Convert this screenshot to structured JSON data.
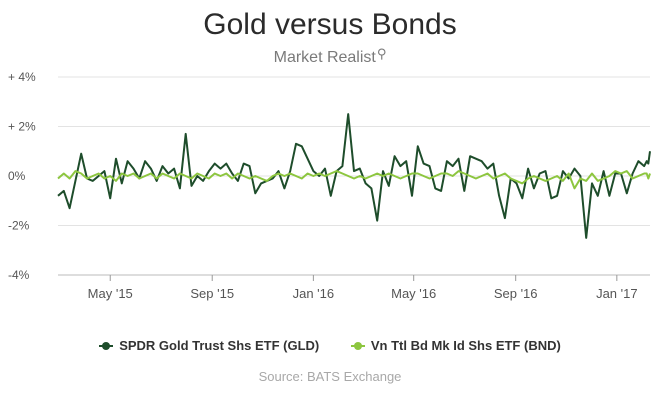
{
  "header": {
    "title": "Gold versus Bonds",
    "brand": "Market Realist"
  },
  "source": "Source: BATS Exchange",
  "colors": {
    "gld": "#1e4d2b",
    "bnd": "#8dc63f",
    "grid": "#e3e3e3",
    "axis": "#555555"
  },
  "chart_data": {
    "type": "line",
    "title": "Gold versus Bonds",
    "xlabel": "",
    "ylabel": "",
    "y_ticks": [
      {
        "value": 4,
        "label": "+ 4%"
      },
      {
        "value": 2,
        "label": "+ 2%"
      },
      {
        "value": 0,
        "label": "0%"
      },
      {
        "value": -2,
        "label": "-2%"
      },
      {
        "value": -4,
        "label": "-4%"
      }
    ],
    "ylim": [
      -4,
      4
    ],
    "xlim": [
      "2015-02-27",
      "2017-02-10"
    ],
    "x_ticks": [
      {
        "date": "2015-05-01",
        "label": "May '15"
      },
      {
        "date": "2015-09-01",
        "label": "Sep '15"
      },
      {
        "date": "2016-01-01",
        "label": "Jan '16"
      },
      {
        "date": "2016-05-01",
        "label": "May '16"
      },
      {
        "date": "2016-09-01",
        "label": "Sep '16"
      },
      {
        "date": "2017-01-01",
        "label": "Jan '17"
      }
    ],
    "legend_position": "bottom",
    "grid": true,
    "series": [
      {
        "name": "SPDR Gold Trust Shs ETF (GLD)",
        "color": "#1e4d2b",
        "points": [
          [
            "2015-02-27",
            -0.8
          ],
          [
            "2015-03-06",
            -0.6
          ],
          [
            "2015-03-13",
            -1.3
          ],
          [
            "2015-03-20",
            -0.2
          ],
          [
            "2015-03-27",
            0.9
          ],
          [
            "2015-04-03",
            -0.1
          ],
          [
            "2015-04-10",
            -0.2
          ],
          [
            "2015-04-17",
            0.0
          ],
          [
            "2015-04-24",
            0.2
          ],
          [
            "2015-05-01",
            -0.9
          ],
          [
            "2015-05-08",
            0.7
          ],
          [
            "2015-05-15",
            -0.3
          ],
          [
            "2015-05-22",
            0.6
          ],
          [
            "2015-05-29",
            0.3
          ],
          [
            "2015-06-05",
            -0.1
          ],
          [
            "2015-06-12",
            0.6
          ],
          [
            "2015-06-19",
            0.3
          ],
          [
            "2015-06-26",
            -0.2
          ],
          [
            "2015-07-03",
            0.4
          ],
          [
            "2015-07-10",
            0.1
          ],
          [
            "2015-07-17",
            0.3
          ],
          [
            "2015-07-24",
            -0.5
          ],
          [
            "2015-07-31",
            1.7
          ],
          [
            "2015-08-07",
            -0.4
          ],
          [
            "2015-08-14",
            0.0
          ],
          [
            "2015-08-21",
            -0.2
          ],
          [
            "2015-08-28",
            0.2
          ],
          [
            "2015-09-04",
            0.5
          ],
          [
            "2015-09-11",
            0.3
          ],
          [
            "2015-09-18",
            0.5
          ],
          [
            "2015-09-25",
            0.1
          ],
          [
            "2015-10-02",
            -0.2
          ],
          [
            "2015-10-09",
            0.5
          ],
          [
            "2015-10-16",
            0.4
          ],
          [
            "2015-10-23",
            -0.7
          ],
          [
            "2015-10-30",
            -0.3
          ],
          [
            "2015-11-06",
            -0.2
          ],
          [
            "2015-11-13",
            -0.1
          ],
          [
            "2015-11-20",
            0.2
          ],
          [
            "2015-11-27",
            -0.5
          ],
          [
            "2015-12-04",
            0.2
          ],
          [
            "2015-12-11",
            1.3
          ],
          [
            "2015-12-18",
            1.2
          ],
          [
            "2015-12-25",
            0.7
          ],
          [
            "2016-01-01",
            0.2
          ],
          [
            "2016-01-08",
            0.0
          ],
          [
            "2016-01-15",
            0.3
          ],
          [
            "2016-01-22",
            -0.8
          ],
          [
            "2016-01-29",
            0.2
          ],
          [
            "2016-02-05",
            0.4
          ],
          [
            "2016-02-12",
            2.5
          ],
          [
            "2016-02-19",
            0.2
          ],
          [
            "2016-02-26",
            0.3
          ],
          [
            "2016-03-04",
            -0.3
          ],
          [
            "2016-03-11",
            -0.5
          ],
          [
            "2016-03-18",
            -1.8
          ],
          [
            "2016-03-25",
            0.2
          ],
          [
            "2016-04-01",
            -0.4
          ],
          [
            "2016-04-08",
            0.8
          ],
          [
            "2016-04-15",
            0.4
          ],
          [
            "2016-04-22",
            0.6
          ],
          [
            "2016-04-29",
            -0.8
          ],
          [
            "2016-05-06",
            1.2
          ],
          [
            "2016-05-13",
            0.5
          ],
          [
            "2016-05-20",
            0.4
          ],
          [
            "2016-05-27",
            -0.5
          ],
          [
            "2016-06-03",
            -0.6
          ],
          [
            "2016-06-10",
            0.6
          ],
          [
            "2016-06-17",
            0.4
          ],
          [
            "2016-06-24",
            0.7
          ],
          [
            "2016-07-01",
            -0.6
          ],
          [
            "2016-07-08",
            0.8
          ],
          [
            "2016-07-15",
            0.7
          ],
          [
            "2016-07-22",
            0.6
          ],
          [
            "2016-07-29",
            0.3
          ],
          [
            "2016-08-05",
            0.5
          ],
          [
            "2016-08-12",
            -0.8
          ],
          [
            "2016-08-19",
            -1.7
          ],
          [
            "2016-08-26",
            -0.1
          ],
          [
            "2016-09-02",
            -0.3
          ],
          [
            "2016-09-09",
            -0.9
          ],
          [
            "2016-09-16",
            0.3
          ],
          [
            "2016-09-23",
            -0.5
          ],
          [
            "2016-09-30",
            0.1
          ],
          [
            "2016-10-07",
            0.2
          ],
          [
            "2016-10-14",
            -0.9
          ],
          [
            "2016-10-21",
            -0.8
          ],
          [
            "2016-10-28",
            0.2
          ],
          [
            "2016-11-04",
            -0.1
          ],
          [
            "2016-11-11",
            0.3
          ],
          [
            "2016-11-18",
            0.0
          ],
          [
            "2016-11-25",
            -2.5
          ],
          [
            "2016-12-02",
            -0.3
          ],
          [
            "2016-12-09",
            -0.8
          ],
          [
            "2016-12-16",
            0.2
          ],
          [
            "2016-12-23",
            -0.8
          ],
          [
            "2016-12-30",
            0.1
          ],
          [
            "2017-01-06",
            0.1
          ],
          [
            "2017-01-13",
            -0.7
          ],
          [
            "2017-01-20",
            0.1
          ],
          [
            "2017-01-27",
            0.6
          ],
          [
            "2017-02-03",
            0.4
          ],
          [
            "2017-02-06",
            0.6
          ],
          [
            "2017-02-08",
            0.5
          ],
          [
            "2017-02-10",
            1.0
          ]
        ]
      },
      {
        "name": "Vn Ttl Bd Mk Id Shs ETF (BND)",
        "color": "#8dc63f",
        "points": [
          [
            "2015-02-27",
            -0.1
          ],
          [
            "2015-03-06",
            0.1
          ],
          [
            "2015-03-13",
            -0.1
          ],
          [
            "2015-03-20",
            0.2
          ],
          [
            "2015-03-27",
            0.1
          ],
          [
            "2015-04-03",
            -0.1
          ],
          [
            "2015-04-10",
            0.0
          ],
          [
            "2015-04-17",
            0.1
          ],
          [
            "2015-04-24",
            -0.1
          ],
          [
            "2015-05-01",
            0.0
          ],
          [
            "2015-05-08",
            -0.2
          ],
          [
            "2015-05-15",
            0.1
          ],
          [
            "2015-05-22",
            0.0
          ],
          [
            "2015-05-29",
            0.1
          ],
          [
            "2015-06-05",
            -0.1
          ],
          [
            "2015-06-12",
            0.0
          ],
          [
            "2015-06-19",
            0.1
          ],
          [
            "2015-06-26",
            -0.1
          ],
          [
            "2015-07-03",
            0.1
          ],
          [
            "2015-07-10",
            0.0
          ],
          [
            "2015-07-17",
            -0.1
          ],
          [
            "2015-07-24",
            0.1
          ],
          [
            "2015-07-31",
            0.0
          ],
          [
            "2015-08-07",
            -0.1
          ],
          [
            "2015-08-14",
            0.1
          ],
          [
            "2015-08-21",
            0.0
          ],
          [
            "2015-08-28",
            -0.1
          ],
          [
            "2015-09-04",
            0.1
          ],
          [
            "2015-09-11",
            0.0
          ],
          [
            "2015-09-18",
            0.1
          ],
          [
            "2015-09-25",
            -0.1
          ],
          [
            "2015-10-02",
            0.1
          ],
          [
            "2015-10-09",
            0.0
          ],
          [
            "2015-10-16",
            -0.1
          ],
          [
            "2015-10-23",
            0.0
          ],
          [
            "2015-10-30",
            -0.1
          ],
          [
            "2015-11-06",
            -0.2
          ],
          [
            "2015-11-13",
            0.0
          ],
          [
            "2015-11-20",
            0.1
          ],
          [
            "2015-11-27",
            0.0
          ],
          [
            "2015-12-04",
            0.1
          ],
          [
            "2015-12-11",
            0.0
          ],
          [
            "2015-12-18",
            -0.1
          ],
          [
            "2015-12-25",
            0.1
          ],
          [
            "2016-01-01",
            0.0
          ],
          [
            "2016-01-08",
            0.1
          ],
          [
            "2016-01-15",
            0.0
          ],
          [
            "2016-01-22",
            0.1
          ],
          [
            "2016-01-29",
            0.2
          ],
          [
            "2016-02-05",
            0.1
          ],
          [
            "2016-02-12",
            0.0
          ],
          [
            "2016-02-19",
            -0.1
          ],
          [
            "2016-02-26",
            0.0
          ],
          [
            "2016-03-04",
            -0.1
          ],
          [
            "2016-03-11",
            0.0
          ],
          [
            "2016-03-18",
            0.1
          ],
          [
            "2016-03-25",
            0.0
          ],
          [
            "2016-04-01",
            0.1
          ],
          [
            "2016-04-08",
            0.0
          ],
          [
            "2016-04-15",
            -0.1
          ],
          [
            "2016-04-22",
            0.0
          ],
          [
            "2016-04-29",
            0.1
          ],
          [
            "2016-05-06",
            0.1
          ],
          [
            "2016-05-13",
            0.0
          ],
          [
            "2016-05-20",
            -0.1
          ],
          [
            "2016-05-27",
            0.0
          ],
          [
            "2016-06-03",
            0.1
          ],
          [
            "2016-06-10",
            0.1
          ],
          [
            "2016-06-17",
            0.0
          ],
          [
            "2016-06-24",
            0.2
          ],
          [
            "2016-07-01",
            0.1
          ],
          [
            "2016-07-08",
            0.0
          ],
          [
            "2016-07-15",
            -0.1
          ],
          [
            "2016-07-22",
            0.0
          ],
          [
            "2016-07-29",
            0.1
          ],
          [
            "2016-08-05",
            -0.1
          ],
          [
            "2016-08-12",
            0.0
          ],
          [
            "2016-08-19",
            0.1
          ],
          [
            "2016-08-26",
            -0.1
          ],
          [
            "2016-09-02",
            -0.2
          ],
          [
            "2016-09-09",
            -0.3
          ],
          [
            "2016-09-16",
            -0.1
          ],
          [
            "2016-09-23",
            0.0
          ],
          [
            "2016-09-30",
            -0.1
          ],
          [
            "2016-10-07",
            -0.2
          ],
          [
            "2016-10-14",
            -0.1
          ],
          [
            "2016-10-21",
            0.0
          ],
          [
            "2016-10-28",
            -0.2
          ],
          [
            "2016-11-04",
            0.1
          ],
          [
            "2016-11-11",
            -0.5
          ],
          [
            "2016-11-18",
            -0.1
          ],
          [
            "2016-11-25",
            -0.2
          ],
          [
            "2016-12-02",
            0.1
          ],
          [
            "2016-12-09",
            -0.2
          ],
          [
            "2016-12-16",
            -0.1
          ],
          [
            "2016-12-23",
            0.0
          ],
          [
            "2016-12-30",
            0.2
          ],
          [
            "2017-01-06",
            0.1
          ],
          [
            "2017-01-13",
            0.2
          ],
          [
            "2017-01-20",
            -0.1
          ],
          [
            "2017-01-27",
            0.0
          ],
          [
            "2017-02-03",
            0.1
          ],
          [
            "2017-02-06",
            0.1
          ],
          [
            "2017-02-08",
            -0.1
          ],
          [
            "2017-02-10",
            0.1
          ]
        ]
      }
    ]
  }
}
